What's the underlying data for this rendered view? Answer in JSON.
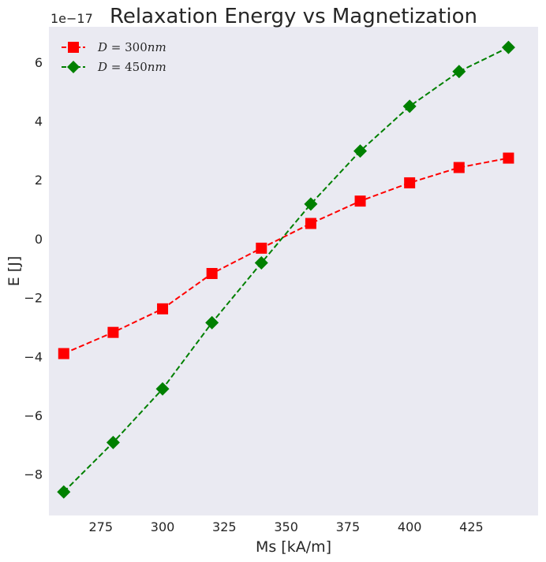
{
  "chart_data": {
    "type": "line",
    "title": "Relaxation Energy vs Magnetization",
    "xlabel": "Ms [kA/m]",
    "ylabel": "E [J]",
    "y_offset_label": "1e−17",
    "xlim": [
      254,
      452
    ],
    "ylim": [
      -9.4,
      7.2
    ],
    "xticks": [
      275,
      300,
      325,
      350,
      375,
      400,
      425
    ],
    "yticks": [
      -8,
      -6,
      -4,
      -2,
      0,
      2,
      4,
      6
    ],
    "ytick_labels": [
      "−8",
      "−6",
      "−4",
      "−2",
      "0",
      "2",
      "4",
      "6"
    ],
    "grid": false,
    "legend_position": "top-left",
    "x": [
      260,
      280,
      300,
      320,
      340,
      360,
      380,
      400,
      420,
      440
    ],
    "series": [
      {
        "name": "D = 300nm",
        "label_main": "D",
        "label_eq": " = 300",
        "label_unit": "nm",
        "color": "#ff0000",
        "marker": "square",
        "linestyle": "dashed",
        "values": [
          -3.9,
          -3.18,
          -2.38,
          -1.18,
          -0.32,
          0.52,
          1.28,
          1.9,
          2.42,
          2.74
        ]
      },
      {
        "name": "D = 450nm",
        "label_main": "D",
        "label_eq": " = 450",
        "label_unit": "nm",
        "color": "#008000",
        "marker": "diamond",
        "linestyle": "dashed",
        "values": [
          -8.6,
          -6.92,
          -5.1,
          -2.85,
          -0.82,
          1.18,
          2.98,
          4.5,
          5.68,
          6.5
        ]
      }
    ]
  }
}
